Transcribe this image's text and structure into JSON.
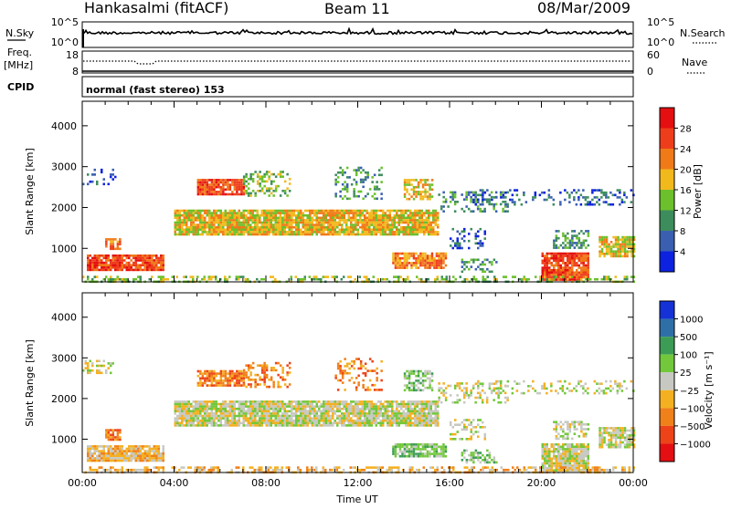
{
  "header": {
    "station": "Hankasalmi (fitACF)",
    "beam": "Beam 11",
    "date": "08/Mar/2009"
  },
  "summary_panels": {
    "nsky_label": "N.Sky",
    "nsearch_label": "N.Search",
    "noise_ticks": [
      "10^5",
      "10^0"
    ],
    "freq_label_1": "Freq.",
    "freq_label_2": "[MHz]",
    "freq_ticks": [
      "18",
      "8"
    ],
    "nave_label": "Nave",
    "nave_ticks": [
      "60",
      "0"
    ],
    "cpid_label": "CPID",
    "cpid_value": "normal (fast stereo) 153"
  },
  "chart_data": [
    {
      "type": "heatmap",
      "name": "power-panel",
      "ylabel": "Slant Range [km]",
      "xlabel": "",
      "ylim": [
        180,
        4600
      ],
      "xlim": [
        0,
        24
      ],
      "y_ticks": [
        "1000",
        "2000",
        "3000",
        "4000"
      ],
      "x_ticks": [],
      "colorbar": {
        "label": "Power [dB]",
        "tick_labels": [
          "4",
          "8",
          "12",
          "16",
          "20",
          "24",
          "28"
        ],
        "colors": [
          "#0c22e0",
          "#3a5fb0",
          "#3d8c5c",
          "#6cc02c",
          "#f2b91d",
          "#f07a18",
          "#ee3d1b",
          "#e40f10"
        ]
      },
      "blobs": [
        {
          "t0": 0.0,
          "t1": 1.4,
          "r0": 2600,
          "r1": 2950,
          "c": 1,
          "d": 0.25
        },
        {
          "t0": 5.0,
          "t1": 7.0,
          "r0": 2300,
          "r1": 2700,
          "c": 6,
          "d": 0.9
        },
        {
          "t0": 4.0,
          "t1": 15.5,
          "r0": 1350,
          "r1": 1950,
          "c": 4,
          "d": 0.9
        },
        {
          "t0": 0.2,
          "t1": 3.5,
          "r0": 450,
          "r1": 850,
          "c": 6,
          "d": 0.9
        },
        {
          "t0": 1.0,
          "t1": 1.6,
          "r0": 1000,
          "r1": 1250,
          "c": 5,
          "d": 0.8
        },
        {
          "t0": 13.5,
          "t1": 15.8,
          "r0": 550,
          "r1": 900,
          "c": 5,
          "d": 0.85
        },
        {
          "t0": 7.0,
          "t1": 9.0,
          "r0": 2300,
          "r1": 2900,
          "c": 3,
          "d": 0.4
        },
        {
          "t0": 11.0,
          "t1": 13.0,
          "r0": 2200,
          "r1": 3000,
          "c": 2,
          "d": 0.3
        },
        {
          "t0": 14.0,
          "t1": 15.2,
          "r0": 2200,
          "r1": 2700,
          "c": 4,
          "d": 0.6
        },
        {
          "t0": 15.5,
          "t1": 18.5,
          "r0": 1900,
          "r1": 2400,
          "c": 2,
          "d": 0.3
        },
        {
          "t0": 17.0,
          "t1": 24.0,
          "r0": 2100,
          "r1": 2450,
          "c": 1,
          "d": 0.25
        },
        {
          "t0": 20.0,
          "t1": 22.0,
          "r0": 250,
          "r1": 900,
          "c": 6,
          "d": 0.9
        },
        {
          "t0": 22.5,
          "t1": 24.0,
          "r0": 800,
          "r1": 1300,
          "c": 4,
          "d": 0.8
        },
        {
          "t0": 20.5,
          "t1": 22.0,
          "r0": 1000,
          "r1": 1450,
          "c": 2,
          "d": 0.5
        },
        {
          "t0": 0.0,
          "t1": 24.0,
          "r0": 180,
          "r1": 330,
          "c": 3,
          "d": 0.45
        },
        {
          "t0": 16.5,
          "t1": 18.0,
          "r0": 450,
          "r1": 750,
          "c": 2,
          "d": 0.4
        },
        {
          "t0": 16.0,
          "t1": 17.5,
          "r0": 1000,
          "r1": 1500,
          "c": 1,
          "d": 0.3
        }
      ]
    },
    {
      "type": "heatmap",
      "name": "velocity-panel",
      "ylabel": "Slant Range [km]",
      "xlabel": "Time UT",
      "ylim": [
        180,
        4600
      ],
      "xlim": [
        0,
        24
      ],
      "y_ticks": [
        "1000",
        "2000",
        "3000",
        "4000"
      ],
      "x_ticks": [
        "00:00",
        "04:00",
        "08:00",
        "12:00",
        "16:00",
        "20:00",
        "00:00"
      ],
      "colorbar": {
        "label": "Velocity [m s⁻¹]",
        "tick_labels": [
          "1000",
          "500",
          "100",
          "25",
          "−25",
          "−100",
          "−500",
          "−1000"
        ],
        "colors": [
          "#1432d6",
          "#2f6fa8",
          "#3c9c55",
          "#72c83a",
          "#c7c8c2",
          "#f4b021",
          "#f0801a",
          "#ed4318",
          "#e30f12"
        ]
      },
      "blobs": [
        {
          "t0": 0.0,
          "t1": 1.4,
          "r0": 2600,
          "r1": 2950,
          "c": 4,
          "d": 0.3
        },
        {
          "t0": 5.0,
          "t1": 7.0,
          "r0": 2300,
          "r1": 2700,
          "c": 6,
          "d": 0.85
        },
        {
          "t0": 4.0,
          "t1": 15.5,
          "r0": 1350,
          "r1": 1950,
          "c": 4,
          "d": 0.9
        },
        {
          "t0": 0.2,
          "t1": 3.5,
          "r0": 450,
          "r1": 850,
          "c": 5,
          "d": 0.9
        },
        {
          "t0": 1.0,
          "t1": 1.6,
          "r0": 1000,
          "r1": 1250,
          "c": 6,
          "d": 0.8
        },
        {
          "t0": 13.5,
          "t1": 15.8,
          "r0": 550,
          "r1": 900,
          "c": 3,
          "d": 0.85
        },
        {
          "t0": 7.0,
          "t1": 9.0,
          "r0": 2300,
          "r1": 2900,
          "c": 6,
          "d": 0.4
        },
        {
          "t0": 11.0,
          "t1": 13.0,
          "r0": 2200,
          "r1": 3000,
          "c": 6,
          "d": 0.3
        },
        {
          "t0": 14.0,
          "t1": 15.2,
          "r0": 2200,
          "r1": 2700,
          "c": 3,
          "d": 0.6
        },
        {
          "t0": 15.5,
          "t1": 18.5,
          "r0": 1900,
          "r1": 2400,
          "c": 4,
          "d": 0.3
        },
        {
          "t0": 17.0,
          "t1": 24.0,
          "r0": 2100,
          "r1": 2450,
          "c": 4,
          "d": 0.25
        },
        {
          "t0": 20.0,
          "t1": 22.0,
          "r0": 250,
          "r1": 900,
          "c": 4,
          "d": 0.9
        },
        {
          "t0": 22.5,
          "t1": 24.0,
          "r0": 800,
          "r1": 1300,
          "c": 4,
          "d": 0.8
        },
        {
          "t0": 20.5,
          "t1": 22.0,
          "r0": 1000,
          "r1": 1450,
          "c": 4,
          "d": 0.5
        },
        {
          "t0": 0.0,
          "t1": 24.0,
          "r0": 180,
          "r1": 330,
          "c": 5,
          "d": 0.45
        },
        {
          "t0": 16.5,
          "t1": 18.0,
          "r0": 450,
          "r1": 750,
          "c": 3,
          "d": 0.5
        },
        {
          "t0": 16.0,
          "t1": 17.5,
          "r0": 1000,
          "r1": 1500,
          "c": 4,
          "d": 0.3
        }
      ]
    }
  ]
}
